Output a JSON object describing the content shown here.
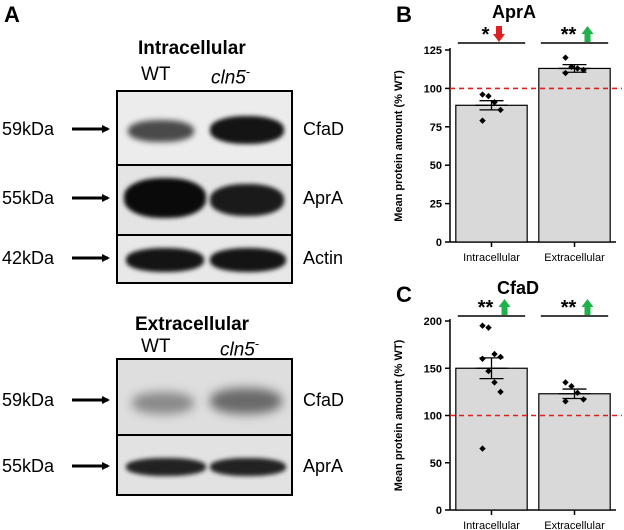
{
  "panel_labels": {
    "a": "A",
    "b": "B",
    "c": "C"
  },
  "western_blot": {
    "intracellular": {
      "title": "Intracellular",
      "lanes": [
        {
          "label": "WT"
        },
        {
          "label": "cln5",
          "sup": "-"
        }
      ],
      "rows": [
        {
          "marker": "59kDa",
          "protein": "CfaD"
        },
        {
          "marker": "55kDa",
          "protein": "AprA"
        },
        {
          "marker": "42kDa",
          "protein": "Actin"
        }
      ]
    },
    "extracellular": {
      "title": "Extracellular",
      "lanes": [
        {
          "label": "WT"
        },
        {
          "label": "cln5",
          "sup": "-"
        }
      ],
      "rows": [
        {
          "marker": "59kDa",
          "protein": "CfaD"
        },
        {
          "marker": "55kDa",
          "protein": "AprA"
        }
      ]
    }
  },
  "chart_data": [
    {
      "type": "bar",
      "title": "AprA",
      "ylabel": "Mean protein amount (% WT)",
      "xlabel": "",
      "categories": [
        "Intracellular",
        "Extracellular"
      ],
      "values": [
        89,
        113
      ],
      "errors": [
        3,
        2.5
      ],
      "points": [
        [
          96,
          95,
          91,
          86,
          79
        ],
        [
          120,
          114,
          113,
          112,
          110
        ]
      ],
      "ylim": [
        0,
        125
      ],
      "yticks": [
        0,
        25,
        50,
        75,
        100,
        125
      ],
      "reference_line": 100,
      "reference_color": "#e02020",
      "bar_color": "#d9d9d9",
      "significance": [
        {
          "stars": "*",
          "direction": "down",
          "color": "#e02020"
        },
        {
          "stars": "**",
          "direction": "up",
          "color": "#1fb24a"
        }
      ]
    },
    {
      "type": "bar",
      "title": "CfaD",
      "ylabel": "Mean protein amount (% WT)",
      "xlabel": "",
      "categories": [
        "Intracellular",
        "Extracellular"
      ],
      "values": [
        150,
        123
      ],
      "errors": [
        11,
        5
      ],
      "points": [
        [
          195,
          193,
          165,
          162,
          160,
          147,
          135,
          125,
          65
        ],
        [
          135,
          131,
          124,
          117,
          115
        ]
      ],
      "ylim": [
        0,
        200
      ],
      "yticks": [
        0,
        50,
        100,
        150,
        200
      ],
      "reference_line": 100,
      "reference_color": "#e02020",
      "bar_color": "#d9d9d9",
      "significance": [
        {
          "stars": "**",
          "direction": "up",
          "color": "#1fb24a"
        },
        {
          "stars": "**",
          "direction": "up",
          "color": "#1fb24a"
        }
      ]
    }
  ]
}
